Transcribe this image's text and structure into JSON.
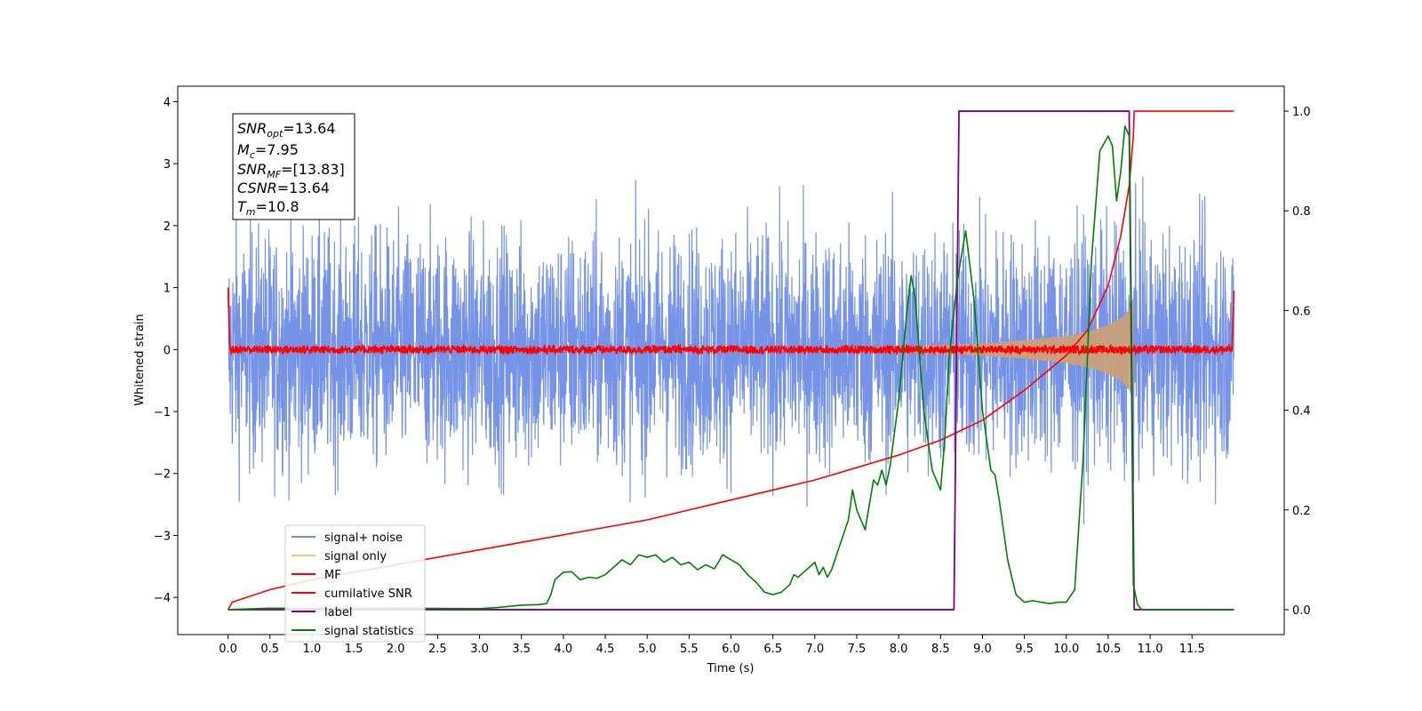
{
  "chart_data": {
    "type": "line",
    "xlabel": "Time (s)",
    "ylabel": "Whitened strain",
    "xlim": [
      -0.6,
      12.6
    ],
    "ylim": [
      -4.6,
      4.25
    ],
    "y2lim": [
      -0.05,
      1.05
    ],
    "x_ticks": [
      "0.0",
      "0.5",
      "1.0",
      "1.5",
      "2.0",
      "2.5",
      "3.0",
      "3.5",
      "4.0",
      "4.5",
      "5.0",
      "5.5",
      "6.0",
      "6.5",
      "7.0",
      "7.5",
      "8.0",
      "8.5",
      "9.0",
      "9.5",
      "10.0",
      "10.5",
      "11.0",
      "11.5"
    ],
    "y_ticks": [
      "4",
      "3",
      "2",
      "1",
      "0",
      "−1",
      "−2",
      "−3",
      "−4"
    ],
    "y2_ticks": [
      "1.0",
      "0.8",
      "0.6",
      "0.4",
      "0.2",
      "0.0"
    ],
    "info_box": {
      "snr_opt": "=13.64",
      "mc": "=7.95",
      "snr_mf": "=[13.83]",
      "csnr": "=13.64",
      "tm": "=10.8"
    },
    "legend": {
      "position": "lower-left",
      "entries": [
        "signal+ noise",
        "signal only",
        "MF",
        "cumilative SNR",
        "label",
        "signal statistics"
      ]
    },
    "colors": {
      "noise": "#6f8de6",
      "signal": "#c8a07a",
      "signal_legend": "#f5c878",
      "mf": "#ff0000",
      "csnr": "#ff0000",
      "label": "#800080",
      "stats": "#008000"
    },
    "series": [
      {
        "name": "signal+ noise",
        "axis": "left",
        "style": "noise band",
        "t_range": [
          0.0,
          12.0
        ],
        "amplitude_envelope": 2.9
      },
      {
        "name": "signal only",
        "axis": "left",
        "t": [
          7.0,
          8.0,
          9.0,
          9.5,
          10.0,
          10.3,
          10.5,
          10.65,
          10.75,
          10.8
        ],
        "envelope": [
          0.02,
          0.05,
          0.1,
          0.15,
          0.22,
          0.3,
          0.4,
          0.5,
          0.65,
          0.85
        ]
      },
      {
        "name": "MF",
        "axis": "left",
        "baseline": 0.0,
        "noise_amplitude": 0.1,
        "start_value": 1.0,
        "end_value": 0.95
      },
      {
        "name": "cumilative SNR",
        "axis": "right",
        "t": [
          0.0,
          0.05,
          0.5,
          1.0,
          2.0,
          3.0,
          4.0,
          5.0,
          6.0,
          7.0,
          8.0,
          8.5,
          9.0,
          9.5,
          10.0,
          10.25,
          10.5,
          10.65,
          10.75,
          10.8,
          10.81,
          12.0
        ],
        "values": [
          0.0,
          0.015,
          0.04,
          0.06,
          0.09,
          0.12,
          0.15,
          0.18,
          0.22,
          0.26,
          0.31,
          0.34,
          0.38,
          0.44,
          0.51,
          0.56,
          0.65,
          0.75,
          0.85,
          0.95,
          1.0,
          1.0
        ]
      },
      {
        "name": "label",
        "axis": "right",
        "t": [
          0.0,
          8.66,
          8.72,
          10.75,
          10.81,
          12.0
        ],
        "values": [
          0.0,
          0.0,
          1.0,
          1.0,
          0.0,
          0.0
        ]
      },
      {
        "name": "signal statistics",
        "axis": "right",
        "t": [
          0.0,
          0.5,
          1.0,
          2.0,
          3.0,
          3.2,
          3.5,
          3.7,
          3.8,
          3.85,
          3.9,
          4.0,
          4.1,
          4.2,
          4.3,
          4.4,
          4.5,
          4.6,
          4.7,
          4.8,
          4.9,
          5.0,
          5.1,
          5.2,
          5.3,
          5.4,
          5.5,
          5.6,
          5.7,
          5.8,
          5.85,
          5.9,
          6.0,
          6.1,
          6.2,
          6.3,
          6.4,
          6.5,
          6.6,
          6.7,
          6.75,
          6.8,
          6.9,
          7.0,
          7.05,
          7.1,
          7.15,
          7.2,
          7.3,
          7.4,
          7.45,
          7.5,
          7.6,
          7.65,
          7.7,
          7.75,
          7.8,
          7.85,
          7.9,
          8.0,
          8.1,
          8.15,
          8.2,
          8.3,
          8.4,
          8.5,
          8.55,
          8.6,
          8.7,
          8.8,
          8.9,
          9.0,
          9.1,
          9.15,
          9.2,
          9.3,
          9.4,
          9.5,
          9.6,
          9.7,
          9.8,
          9.9,
          10.0,
          10.1,
          10.2,
          10.3,
          10.4,
          10.5,
          10.55,
          10.6,
          10.65,
          10.7,
          10.75,
          10.8,
          10.85,
          10.9,
          11.0,
          12.0
        ],
        "values": [
          0.0,
          0.003,
          0.002,
          0.003,
          0.002,
          0.004,
          0.009,
          0.01,
          0.012,
          0.03,
          0.06,
          0.075,
          0.076,
          0.06,
          0.065,
          0.063,
          0.07,
          0.085,
          0.1,
          0.09,
          0.11,
          0.105,
          0.11,
          0.095,
          0.105,
          0.09,
          0.095,
          0.08,
          0.09,
          0.082,
          0.095,
          0.11,
          0.1,
          0.09,
          0.07,
          0.055,
          0.035,
          0.03,
          0.035,
          0.05,
          0.07,
          0.065,
          0.08,
          0.095,
          0.07,
          0.085,
          0.065,
          0.08,
          0.13,
          0.18,
          0.24,
          0.2,
          0.16,
          0.21,
          0.26,
          0.25,
          0.28,
          0.25,
          0.29,
          0.42,
          0.6,
          0.67,
          0.62,
          0.4,
          0.28,
          0.24,
          0.34,
          0.5,
          0.66,
          0.76,
          0.62,
          0.4,
          0.28,
          0.27,
          0.22,
          0.1,
          0.03,
          0.015,
          0.018,
          0.015,
          0.012,
          0.015,
          0.015,
          0.04,
          0.3,
          0.7,
          0.92,
          0.95,
          0.93,
          0.82,
          0.88,
          0.97,
          0.95,
          0.05,
          0.01,
          0.0,
          0.0,
          0.0
        ]
      }
    ]
  }
}
